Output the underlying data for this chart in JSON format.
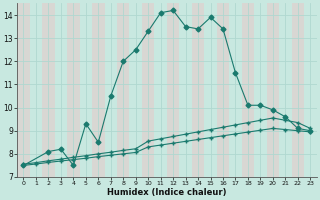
{
  "xlabel": "Humidex (Indice chaleur)",
  "xlim": [
    -0.5,
    23.5
  ],
  "ylim": [
    7,
    14.5
  ],
  "yticks": [
    7,
    8,
    9,
    10,
    11,
    12,
    13,
    14
  ],
  "xticks": [
    0,
    1,
    2,
    3,
    4,
    5,
    6,
    7,
    8,
    9,
    10,
    11,
    12,
    13,
    14,
    15,
    16,
    17,
    18,
    19,
    20,
    21,
    22,
    23
  ],
  "bg_color": "#c8e8e0",
  "grid_major_color": "#b0d8d0",
  "grid_minor_color": "#e8c8c8",
  "line_color": "#1a7a6e",
  "line1_x": [
    0,
    2,
    3,
    4,
    5,
    6,
    7,
    8,
    9,
    10,
    11,
    12,
    13,
    14,
    15,
    16,
    17,
    18,
    19,
    20,
    21,
    22,
    23
  ],
  "line1_y": [
    7.5,
    8.1,
    8.2,
    7.5,
    9.3,
    8.5,
    10.5,
    12.0,
    12.5,
    13.3,
    14.1,
    14.2,
    13.5,
    13.4,
    13.9,
    13.4,
    11.5,
    10.1,
    10.1,
    9.9,
    9.6,
    9.1,
    9.0
  ],
  "line2_x": [
    0,
    1,
    2,
    3,
    4,
    5,
    6,
    7,
    8,
    9,
    10,
    11,
    12,
    13,
    14,
    15,
    16,
    17,
    18,
    19,
    20,
    21,
    22,
    23
  ],
  "line2_y": [
    7.55,
    7.62,
    7.7,
    7.77,
    7.85,
    7.92,
    8.0,
    8.07,
    8.15,
    8.22,
    8.55,
    8.65,
    8.75,
    8.85,
    8.95,
    9.05,
    9.15,
    9.25,
    9.35,
    9.45,
    9.55,
    9.45,
    9.35,
    9.1
  ],
  "line3_x": [
    0,
    1,
    2,
    3,
    4,
    5,
    6,
    7,
    8,
    9,
    10,
    11,
    12,
    13,
    14,
    15,
    16,
    17,
    18,
    19,
    20,
    21,
    22,
    23
  ],
  "line3_y": [
    7.5,
    7.56,
    7.63,
    7.69,
    7.75,
    7.81,
    7.88,
    7.94,
    8.0,
    8.06,
    8.3,
    8.38,
    8.46,
    8.54,
    8.62,
    8.7,
    8.78,
    8.86,
    8.94,
    9.02,
    9.1,
    9.05,
    9.0,
    8.95
  ]
}
